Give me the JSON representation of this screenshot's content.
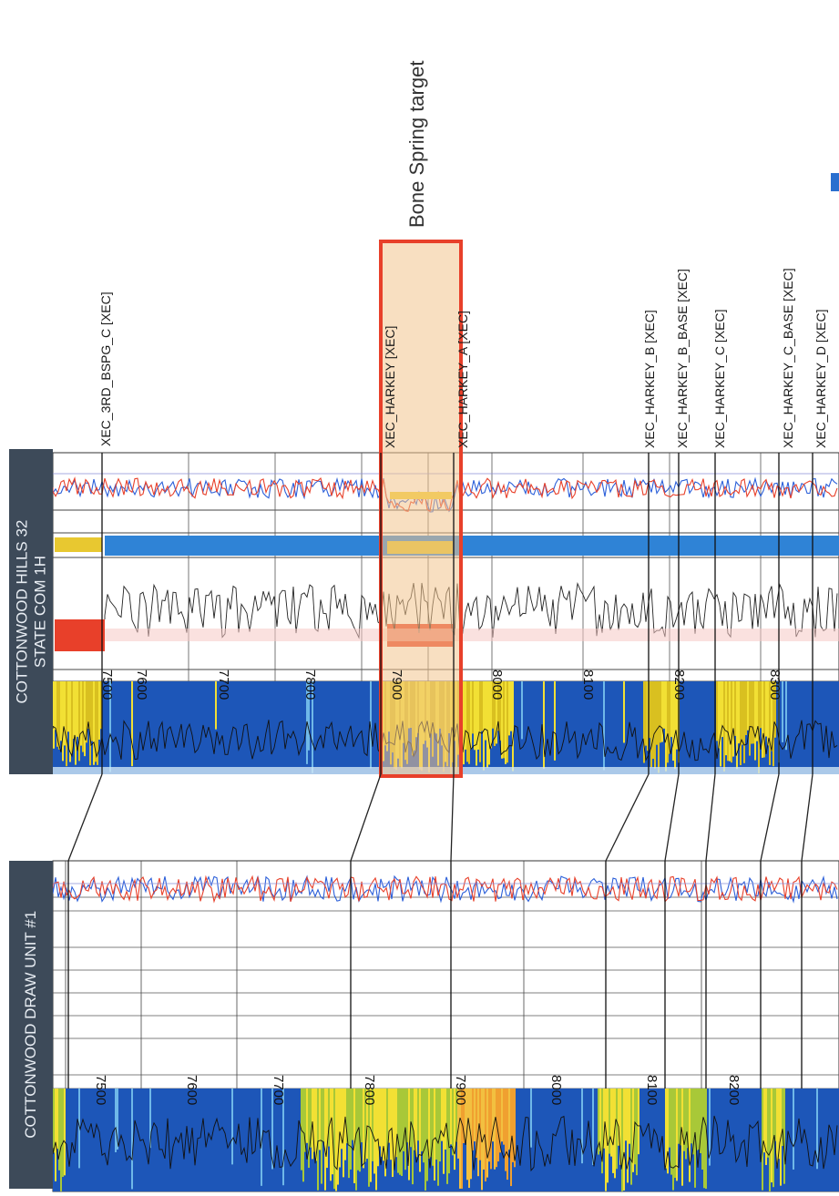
{
  "wells": [
    {
      "name": "COTTONWOOD HILLS 32\nSTATE COM 1H",
      "depths": [
        "7500",
        "7600",
        "7700",
        "7800",
        "7900",
        "8000",
        "8100",
        "8200",
        "8300"
      ]
    },
    {
      "name": "COTTONWOOD DRAW UNIT #1",
      "depths": [
        "7500",
        "7600",
        "7700",
        "7800",
        "7900",
        "8000",
        "8100",
        "8200"
      ]
    }
  ],
  "markers": [
    "XEC_3RD_BSPG_C [XEC]",
    "XEC_HARKEY [XEC]",
    "XEC_HARKEY_A [XEC]",
    "XEC_HARKEY_B [XEC]",
    "XEC_HARKEY_B_BASE [XEC]",
    "XEC_HARKEY_C [XEC]",
    "XEC_HARKEY_C_BASE [XEC]",
    "XEC_HARKEY_D [XEC]"
  ],
  "target": {
    "label": "Bone Spring target"
  },
  "colors": {
    "label_bg": "#3d4a59",
    "highlight_fill": "#f3c58e",
    "highlight_border": "#e8402a",
    "facies_blue": "#1d56b8",
    "facies_yellow": "#f2e034",
    "gr_red": "#e8402a",
    "res_blue": "#2b5fd9"
  }
}
